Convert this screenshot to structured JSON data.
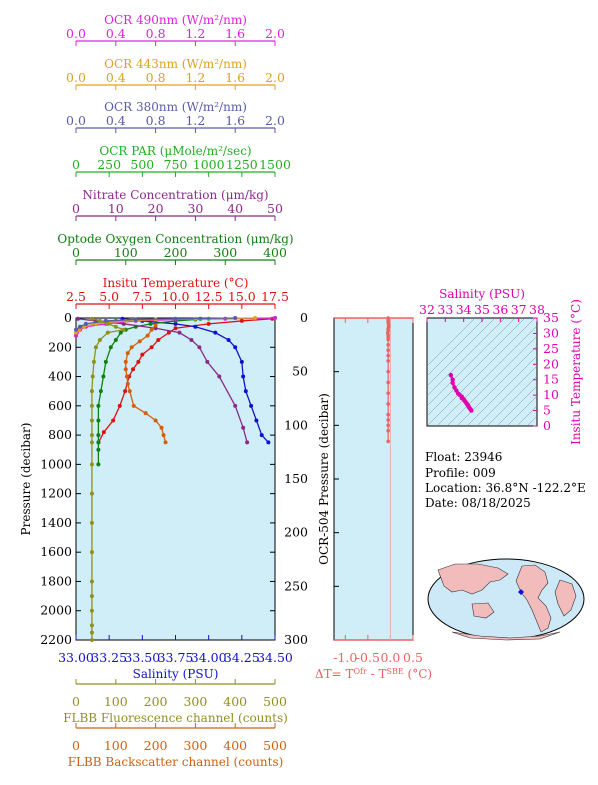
{
  "colors": {
    "ocr490": "#e020e0",
    "ocr443": "#e0a020",
    "ocr380": "#5a5aaa",
    "par": "#20b020",
    "nitrate": "#8a2a8a",
    "oxygen": "#108010",
    "temperature": "#e01010",
    "salinity": "#1010d0",
    "fluorescence": "#909020",
    "backscatter": "#d06010",
    "deltaT": "#f06060",
    "inset": "#e000b0",
    "plot_bg": "#d0eef8"
  },
  "top_axes": [
    {
      "key": "ocr490",
      "label": "OCR 490nm (W/m²/nm)",
      "ticks": [
        "0.0",
        "0.4",
        "0.8",
        "1.2",
        "1.6",
        "2.0"
      ]
    },
    {
      "key": "ocr443",
      "label": "OCR 443nm (W/m²/nm)",
      "ticks": [
        "0.0",
        "0.4",
        "0.8",
        "1.2",
        "1.6",
        "2.0"
      ]
    },
    {
      "key": "ocr380",
      "label": "OCR 380nm (W/m²/nm)",
      "ticks": [
        "0.0",
        "0.4",
        "0.8",
        "1.2",
        "1.6",
        "2.0"
      ]
    },
    {
      "key": "par",
      "label": "OCR PAR (μMole/m²/sec)",
      "ticks": [
        "0",
        "250",
        "500",
        "750",
        "1000",
        "1250",
        "1500"
      ]
    },
    {
      "key": "nitrate",
      "label": "Nitrate Concentration (μm/kg)",
      "ticks": [
        "0",
        "10",
        "20",
        "30",
        "40",
        "50"
      ]
    },
    {
      "key": "oxygen",
      "label": "Optode Oxygen Concentration (μm/kg)",
      "ticks": [
        "0",
        "100",
        "200",
        "300",
        "400"
      ]
    },
    {
      "key": "temperature",
      "label": "Insitu Temperature (°C)",
      "ticks": [
        "2.5",
        "5.0",
        "7.5",
        "10.0",
        "12.5",
        "15.0",
        "17.5"
      ]
    }
  ],
  "bottom_axes": [
    {
      "key": "salinity",
      "label": "Salinity (PSU)",
      "ticks": [
        "33.00",
        "33.25",
        "33.50",
        "33.75",
        "34.00",
        "34.25",
        "34.50"
      ]
    },
    {
      "key": "fluorescence",
      "label": "FLBB Fluorescence channel (counts)",
      "ticks": [
        "0",
        "100",
        "200",
        "300",
        "400",
        "500"
      ]
    },
    {
      "key": "backscatter",
      "label": "FLBB Backscatter channel (counts)",
      "ticks": [
        "0",
        "100",
        "200",
        "300",
        "400",
        "500"
      ]
    }
  ],
  "main_y_label": "Pressure (decibar)",
  "main_y_ticks": [
    "0",
    "200",
    "400",
    "600",
    "800",
    "1000",
    "1200",
    "1400",
    "1600",
    "1800",
    "2000",
    "2200"
  ],
  "mid_y_label": "OCR-504 Pressure (decibar)",
  "mid_y_ticks": [
    "0",
    "50",
    "100",
    "150",
    "200",
    "250",
    "300"
  ],
  "mid_x_ticks": [
    "-1.0",
    "-0.5",
    "0.0",
    "0.5"
  ],
  "mid_x_label": "ΔT= T^Ofr - T^SBE (°C)",
  "inset": {
    "x_label": "Salinity (PSU)",
    "x_ticks": [
      "32",
      "33",
      "34",
      "35",
      "36",
      "37",
      "38"
    ],
    "y_label": "Insitu Temperature (°C)",
    "y_ticks": [
      "0",
      "5",
      "10",
      "15",
      "20",
      "25",
      "30",
      "35"
    ]
  },
  "info": {
    "float": "Float:  23946",
    "profile": "Profile:  009",
    "location": "Location:  36.8°N  -122.2°E",
    "date": "Date:  08/18/2025"
  },
  "chart_data": [
    {
      "type": "line",
      "title": "",
      "ylabel": "Pressure (decibar)",
      "ylim": [
        2200,
        0
      ],
      "series": [
        {
          "name": "Insitu Temperature (°C)",
          "xlim": [
            2.5,
            17.5
          ],
          "x": [
            17.3,
            15.0,
            12.5,
            10.0,
            9.5,
            8.7,
            8.2,
            7.5,
            7.2,
            6.8,
            6.5,
            6.2,
            5.8,
            5.3,
            4.6,
            4.2
          ],
          "y": [
            5,
            20,
            40,
            70,
            100,
            150,
            200,
            250,
            300,
            350,
            400,
            500,
            600,
            700,
            780,
            850
          ]
        },
        {
          "name": "Salinity (PSU)",
          "xlim": [
            33.0,
            34.5
          ],
          "x": [
            33.35,
            33.5,
            33.75,
            33.9,
            34.05,
            34.15,
            34.2,
            34.25,
            34.26,
            34.28,
            34.32,
            34.36,
            34.4,
            34.45
          ],
          "y": [
            5,
            20,
            40,
            60,
            100,
            150,
            200,
            300,
            400,
            500,
            600,
            700,
            800,
            850
          ]
        },
        {
          "name": "Optode Oxygen Concentration (μm/kg)",
          "xlim": [
            0,
            400
          ],
          "x": [
            250,
            240,
            200,
            150,
            120,
            100,
            90,
            80,
            70,
            60,
            55,
            50,
            45,
            45,
            45,
            45,
            45,
            45
          ],
          "y": [
            5,
            10,
            20,
            40,
            60,
            80,
            100,
            150,
            200,
            300,
            400,
            500,
            600,
            700,
            800,
            850,
            900,
            1000
          ]
        },
        {
          "name": "Nitrate Concentration (μm/kg)",
          "xlim": [
            0,
            50
          ],
          "x": [
            0.5,
            5,
            12,
            20,
            26,
            29,
            31,
            33,
            36,
            40,
            42,
            43
          ],
          "y": [
            5,
            20,
            40,
            70,
            100,
            150,
            200,
            300,
            400,
            600,
            750,
            850
          ]
        },
        {
          "name": "OCR PAR (μMole/m²/sec)",
          "xlim": [
            0,
            1500
          ],
          "x": [
            1500,
            1000,
            600,
            300,
            150,
            50,
            10,
            5,
            0
          ],
          "y": [
            0,
            5,
            10,
            20,
            40,
            60,
            80,
            100,
            120
          ]
        },
        {
          "name": "OCR 490nm (W/m²/nm)",
          "xlim": [
            0,
            2
          ],
          "x": [
            2.0,
            1.5,
            1.0,
            0.6,
            0.3,
            0.1,
            0.04,
            0.01,
            0.0
          ],
          "y": [
            0,
            5,
            10,
            20,
            40,
            60,
            80,
            100,
            120
          ]
        },
        {
          "name": "OCR 443nm (W/m²/nm)",
          "xlim": [
            0,
            2
          ],
          "x": [
            1.8,
            1.2,
            0.8,
            0.5,
            0.2,
            0.08,
            0.03,
            0.0
          ],
          "y": [
            0,
            5,
            10,
            20,
            40,
            60,
            80,
            100
          ]
        },
        {
          "name": "OCR 380nm (W/m²/nm)",
          "xlim": [
            0,
            2
          ],
          "x": [
            1.6,
            1.0,
            0.6,
            0.3,
            0.1,
            0.04,
            0.0
          ],
          "y": [
            0,
            5,
            10,
            20,
            40,
            60,
            80
          ]
        },
        {
          "name": "FLBB Fluorescence channel (counts)",
          "xlim": [
            0,
            500
          ],
          "x": [
            40,
            60,
            80,
            100,
            120,
            80,
            60,
            50,
            45,
            42,
            40,
            40,
            40,
            40,
            40,
            40,
            40,
            40,
            40,
            40,
            40,
            40,
            40,
            40,
            40
          ],
          "y": [
            5,
            20,
            40,
            60,
            80,
            100,
            150,
            200,
            300,
            400,
            500,
            600,
            700,
            800,
            850,
            1000,
            1200,
            1400,
            1600,
            1800,
            1900,
            2000,
            2100,
            2150,
            2200
          ]
        },
        {
          "name": "FLBB Backscatter channel (counts)",
          "xlim": [
            0,
            500
          ],
          "x": [
            200,
            190,
            180,
            160,
            140,
            130,
            125,
            125,
            128,
            130,
            135,
            145,
            175,
            200,
            215,
            220,
            225
          ],
          "y": [
            50,
            80,
            120,
            160,
            200,
            240,
            300,
            350,
            400,
            450,
            500,
            600,
            650,
            700,
            750,
            800,
            850
          ]
        }
      ]
    },
    {
      "type": "scatter",
      "title": "",
      "xlabel": "ΔT= T^Ofr - T^SBE (°C)",
      "ylabel": "OCR-504 Pressure (decibar)",
      "xlim": [
        -1.25,
        0.5
      ],
      "ylim": [
        300,
        0
      ],
      "x": [
        -0.05,
        -0.05,
        -0.05,
        -0.04,
        -0.04,
        -0.05,
        -0.05,
        -0.06,
        -0.05,
        -0.05,
        -0.05,
        -0.05,
        -0.05,
        -0.05,
        -0.05,
        -0.05,
        -0.05,
        -0.05,
        -0.05,
        -0.05,
        -0.05,
        -0.05,
        -0.05,
        -0.05
      ],
      "y": [
        0,
        2,
        4,
        6,
        8,
        10,
        12,
        14,
        16,
        18,
        20,
        25,
        30,
        35,
        40,
        50,
        60,
        70,
        80,
        90,
        95,
        100,
        105,
        115
      ]
    },
    {
      "type": "scatter",
      "title": "",
      "xlabel": "Salinity (PSU)",
      "ylabel": "Insitu Temperature (°C)",
      "xlim": [
        32,
        38
      ],
      "ylim": [
        0,
        35
      ],
      "x": [
        33.3,
        33.4,
        33.4,
        33.5,
        33.6,
        33.7,
        33.8,
        33.9,
        33.9,
        34.0,
        34.05,
        34.1,
        34.15,
        34.2,
        34.25,
        34.28,
        34.32,
        34.38,
        34.42
      ],
      "y": [
        16.5,
        15.0,
        14.0,
        12.5,
        11.5,
        10.5,
        10.0,
        9.5,
        9.0,
        8.7,
        8.2,
        7.8,
        7.4,
        7.0,
        6.6,
        6.2,
        5.8,
        5.4,
        5.0
      ]
    }
  ]
}
